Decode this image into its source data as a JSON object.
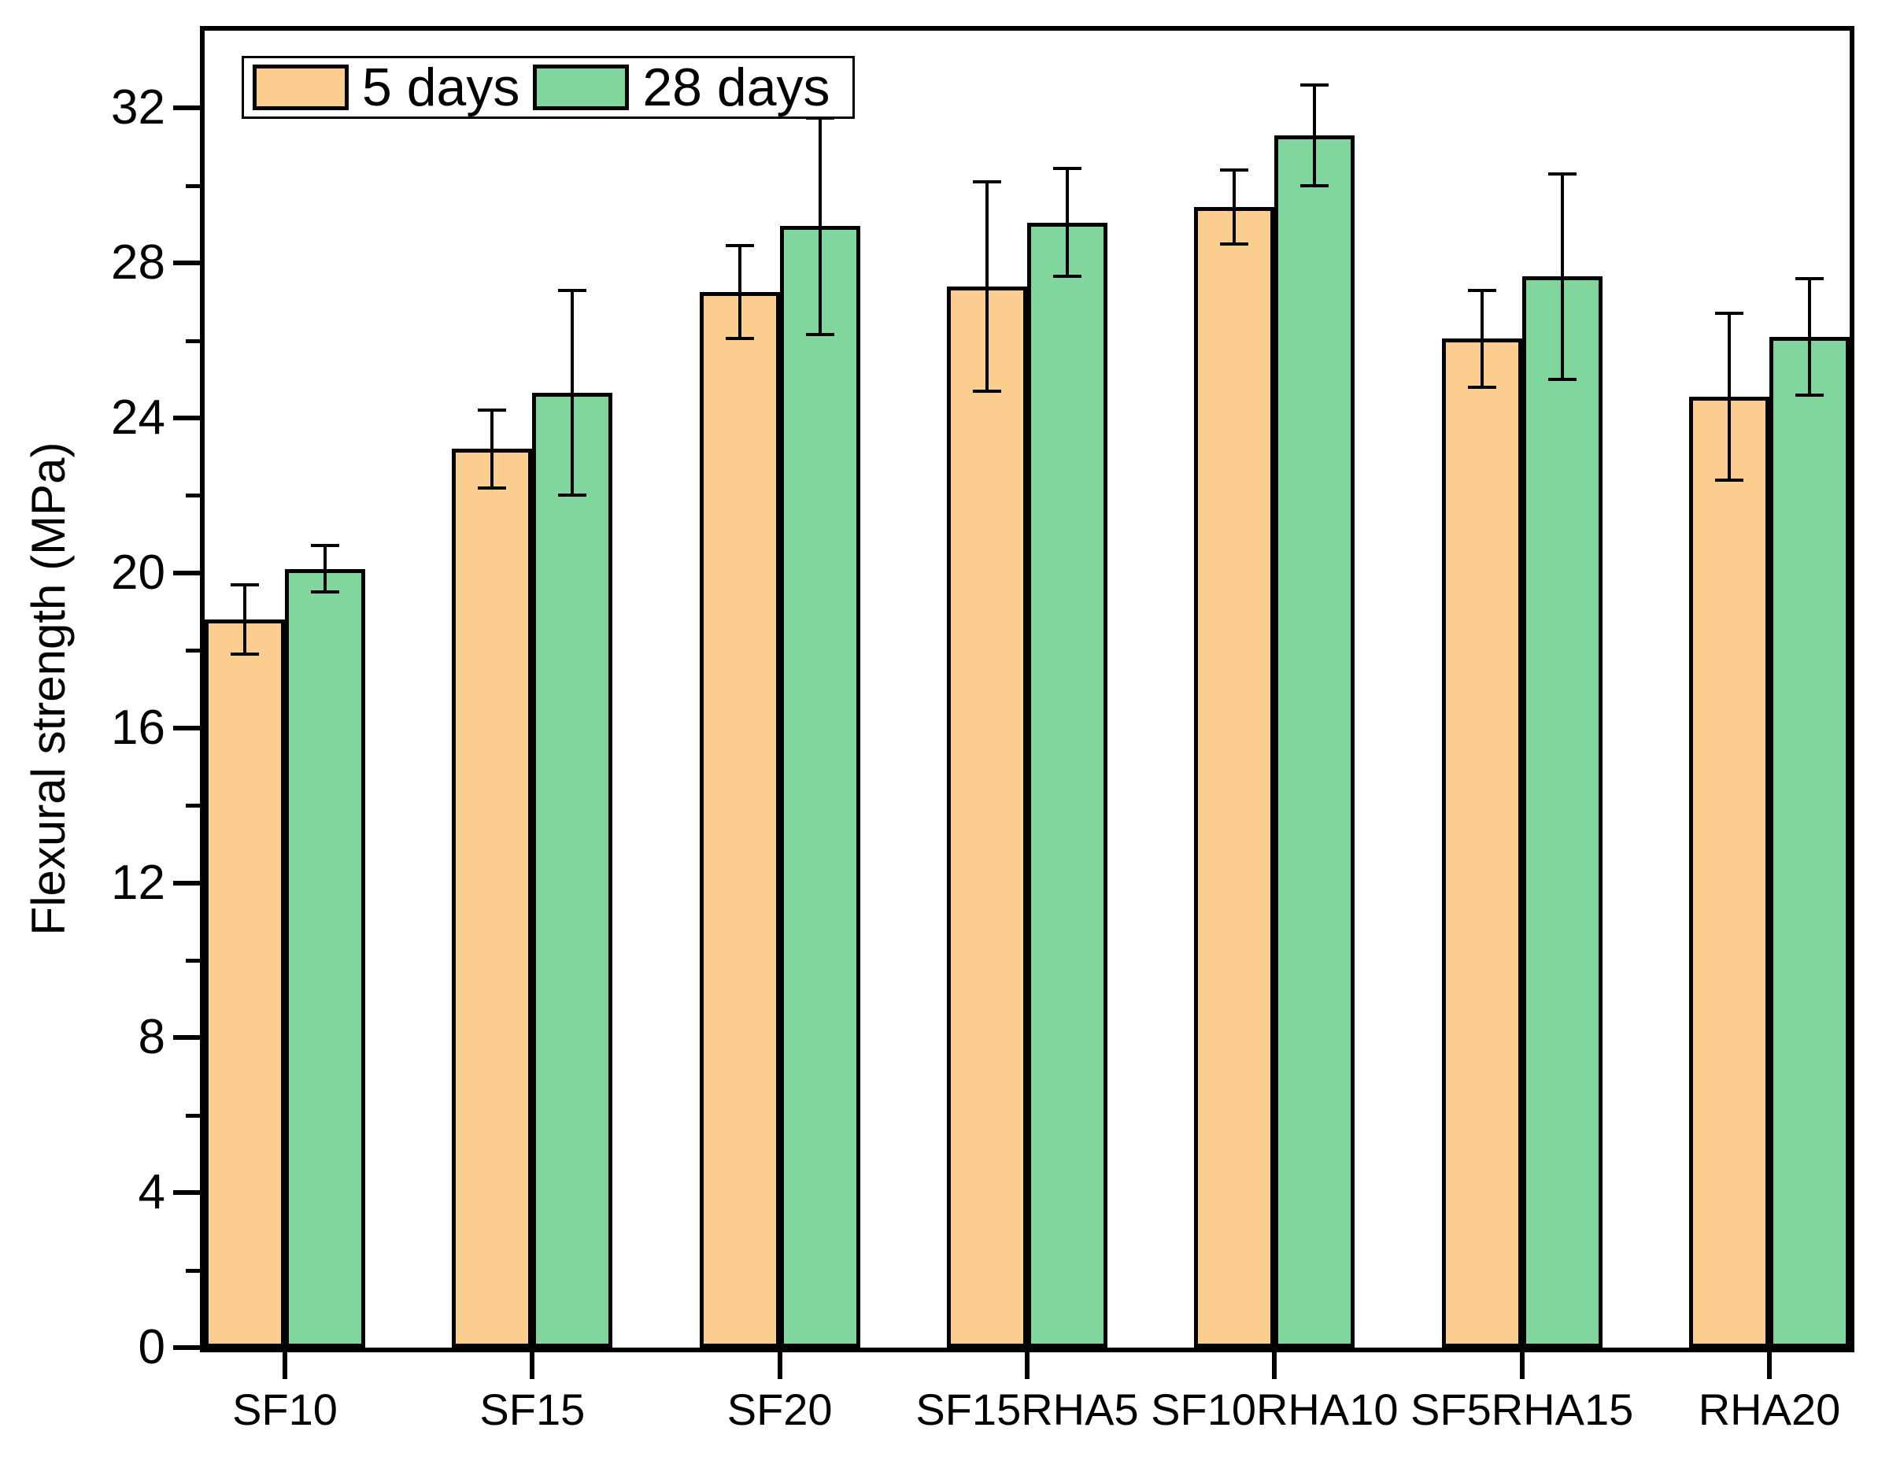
{
  "figure": {
    "background": "#ffffff",
    "axis_color": "#000000"
  },
  "chart_data": {
    "type": "bar",
    "title": "",
    "xlabel": "",
    "ylabel": "Flexural strength (MPa)",
    "categories": [
      "SF10",
      "SF15",
      "SF20",
      "SF15RHA5",
      "SF10RHA10",
      "SF5RHA15",
      "RHA20"
    ],
    "series": [
      {
        "name": "5 days",
        "color": "#FBCD8F",
        "values": [
          18.8,
          23.2,
          27.25,
          27.4,
          29.45,
          26.05,
          24.55
        ],
        "errors": [
          0.9,
          1.0,
          1.2,
          2.7,
          0.95,
          1.25,
          2.15
        ]
      },
      {
        "name": "28 days",
        "color": "#80D69C",
        "values": [
          20.1,
          24.65,
          28.95,
          29.05,
          31.3,
          27.65,
          26.1
        ],
        "errors": [
          0.6,
          2.65,
          2.8,
          1.4,
          1.3,
          2.65,
          1.5
        ]
      }
    ],
    "ylim": [
      0,
      34
    ],
    "yticks": [
      0,
      4,
      8,
      12,
      16,
      20,
      24,
      28,
      32
    ],
    "y_minor_step": 2,
    "grid": false,
    "legend_position": "top-left",
    "error_bars": true
  }
}
